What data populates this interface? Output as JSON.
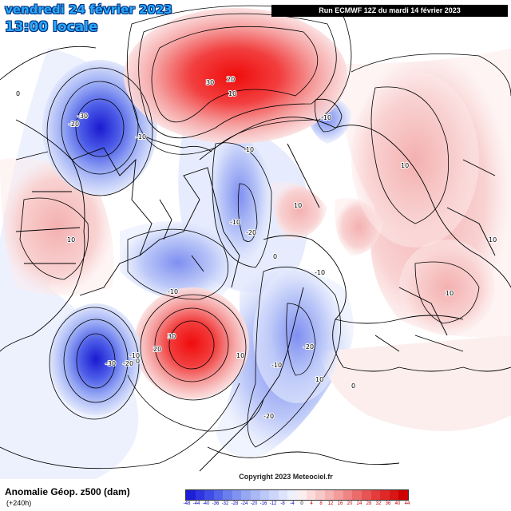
{
  "header": {
    "date_text": "vendredi 24 février 2023",
    "time_text": "13:00 locale",
    "run_text": "Run ECMWF 12Z du mardi 14 février 2023"
  },
  "footer": {
    "title": "Anomalie Géop. z500 (dam)",
    "subtitle": "(+240h)",
    "copyright": "Copyright 2023 Meteociel.fr"
  },
  "legend": {
    "ticks": [
      "-48",
      "-44",
      "-40",
      "-36",
      "-32",
      "-28",
      "-24",
      "-20",
      "-16",
      "-12",
      "-8",
      "-4",
      "0",
      "4",
      "8",
      "12",
      "16",
      "20",
      "24",
      "28",
      "32",
      "36",
      "40",
      "44"
    ],
    "colors": [
      "#1f1fd6",
      "#2f35e0",
      "#3f4de6",
      "#5366ea",
      "#6a7eee",
      "#8093f1",
      "#96a7f4",
      "#aab9f6",
      "#bcc8f8",
      "#ccd6fa",
      "#dde4fc",
      "#edf1fe",
      "#fdeeee",
      "#fbdcdc",
      "#f8c8c8",
      "#f5b2b2",
      "#f29c9c",
      "#ef8484",
      "#ec6c6c",
      "#e85454",
      "#e43c3c",
      "#df2828",
      "#d81616",
      "#d00000"
    ]
  },
  "contour_labels": [
    {
      "text": "-30"
    },
    {
      "text": "-20"
    },
    {
      "text": "-10"
    },
    {
      "text": "30"
    },
    {
      "text": "20"
    },
    {
      "text": "10"
    },
    {
      "text": "-10"
    },
    {
      "text": "-10"
    },
    {
      "text": "-10"
    },
    {
      "text": "-20"
    },
    {
      "text": "10"
    },
    {
      "text": "10"
    },
    {
      "text": "10"
    },
    {
      "text": "10"
    },
    {
      "text": "10"
    },
    {
      "text": "-10"
    },
    {
      "text": "-10"
    },
    {
      "text": "-30"
    },
    {
      "text": "-20"
    },
    {
      "text": "-10"
    },
    {
      "text": "0"
    },
    {
      "text": "20"
    },
    {
      "text": "30"
    },
    {
      "text": "10"
    },
    {
      "text": "-20"
    },
    {
      "text": "-10"
    },
    {
      "text": "10"
    },
    {
      "text": "-20"
    },
    {
      "text": "0"
    },
    {
      "text": "0"
    },
    {
      "text": "0"
    }
  ]
}
